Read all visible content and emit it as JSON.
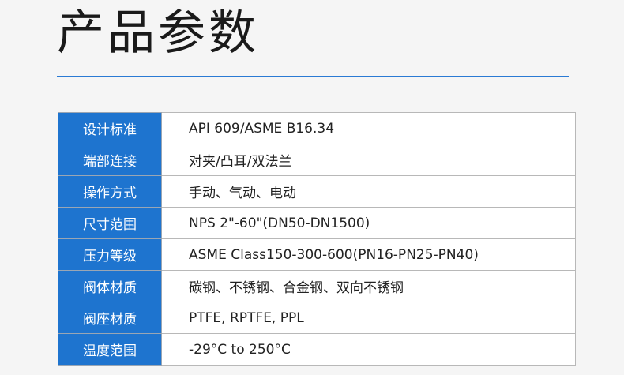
{
  "title": "产品参数",
  "rows": [
    {
      "label": "设计标准",
      "value": "API 609/ASME B16.34"
    },
    {
      "label": "端部连接",
      "value": "对夹/凸耳/双法兰"
    },
    {
      "label": "操作方式",
      "value": "手动、气动、电动"
    },
    {
      "label": "尺寸范围",
      "value": "NPS 2\"-60\"(DN50-DN1500)"
    },
    {
      "label": "压力等级",
      "value": "ASME Class150-300-600(PN16-PN25-PN40)"
    },
    {
      "label": "阀体材质",
      "value": "碳钢、不锈钢、合金钢、双向不锈钢"
    },
    {
      "label": "阀座材质",
      "value": "PTFE, RPTFE, PPL"
    },
    {
      "label": "温度范围",
      "value": "-29°C to 250°C"
    }
  ],
  "colors": {
    "accent": "#1e74cf",
    "rule": "#2a7ad4"
  }
}
